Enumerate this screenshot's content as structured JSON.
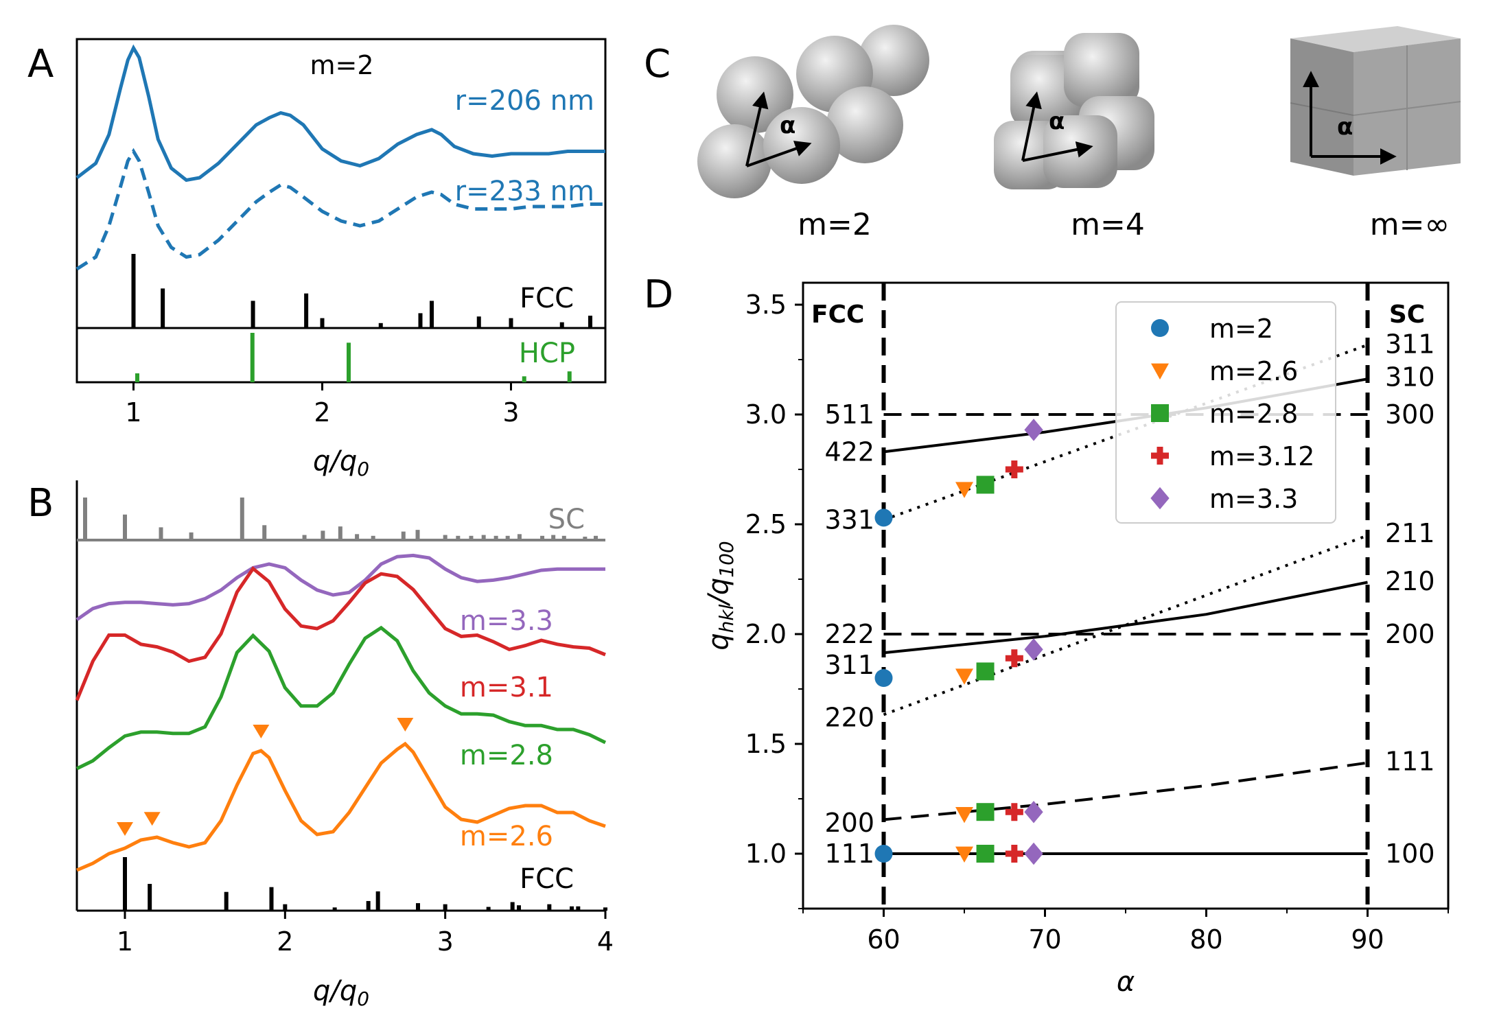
{
  "figure_title": "",
  "panel_labels": {
    "A": "A",
    "B": "B",
    "C": "C",
    "D": "D"
  },
  "colors": {
    "blue": "#1f77b4",
    "orange": "#ff7f0e",
    "green": "#2ca02c",
    "red": "#d62728",
    "purple": "#9467bd",
    "gray": "#808080",
    "black": "#000000"
  },
  "chart_data": [
    {
      "id": "A",
      "type": "line",
      "title": "m=2",
      "xlabel": "q/q0",
      "ylabel": "",
      "xlim": [
        0.7,
        3.5
      ],
      "xticks": [
        1,
        2,
        3
      ],
      "xticklabels": [
        "1",
        "2",
        "3"
      ],
      "series": [
        {
          "name": "r=206 nm",
          "style": "solid",
          "color": "#1f77b4",
          "x": [
            0.7,
            0.8,
            0.87,
            0.93,
            0.97,
            1.0,
            1.03,
            1.08,
            1.13,
            1.2,
            1.28,
            1.35,
            1.45,
            1.55,
            1.65,
            1.72,
            1.78,
            1.83,
            1.9,
            2.0,
            2.1,
            2.2,
            2.3,
            2.4,
            2.5,
            2.58,
            2.63,
            2.7,
            2.8,
            2.9,
            3.0,
            3.1,
            3.2,
            3.3,
            3.4,
            3.5
          ],
          "y": [
            0.56,
            0.62,
            0.74,
            0.93,
            1.05,
            1.1,
            1.06,
            0.9,
            0.72,
            0.6,
            0.55,
            0.56,
            0.62,
            0.7,
            0.78,
            0.81,
            0.83,
            0.82,
            0.78,
            0.68,
            0.63,
            0.61,
            0.64,
            0.7,
            0.74,
            0.76,
            0.74,
            0.69,
            0.66,
            0.65,
            0.66,
            0.66,
            0.66,
            0.67,
            0.67,
            0.67
          ]
        },
        {
          "name": "r=233 nm",
          "style": "dashed",
          "color": "#1f77b4",
          "x": [
            0.7,
            0.8,
            0.87,
            0.93,
            0.97,
            1.0,
            1.03,
            1.08,
            1.13,
            1.2,
            1.28,
            1.35,
            1.45,
            1.55,
            1.65,
            1.72,
            1.78,
            1.83,
            1.9,
            2.0,
            2.1,
            2.2,
            2.3,
            2.4,
            2.5,
            2.58,
            2.63,
            2.7,
            2.8,
            2.9,
            3.0,
            3.1,
            3.2,
            3.3,
            3.4,
            3.5
          ],
          "y": [
            0.18,
            0.23,
            0.36,
            0.52,
            0.63,
            0.67,
            0.63,
            0.5,
            0.36,
            0.27,
            0.23,
            0.24,
            0.3,
            0.38,
            0.46,
            0.5,
            0.53,
            0.52,
            0.48,
            0.42,
            0.38,
            0.36,
            0.38,
            0.43,
            0.48,
            0.5,
            0.49,
            0.45,
            0.43,
            0.43,
            0.43,
            0.44,
            0.44,
            0.44,
            0.45,
            0.45
          ]
        }
      ],
      "annotations": [
        "m=2",
        "r=206 nm",
        "r=233 nm"
      ]
    },
    {
      "id": "A-FCC",
      "type": "bar",
      "name": "FCC",
      "color": "#000000",
      "x": [
        1.0,
        1.155,
        1.633,
        1.915,
        2.0,
        2.31,
        2.52,
        2.58,
        2.83,
        3.0,
        3.27,
        3.42
      ],
      "values": [
        0.9,
        0.48,
        0.33,
        0.42,
        0.12,
        0.06,
        0.18,
        0.33,
        0.14,
        0.12,
        0.07,
        0.15
      ]
    },
    {
      "id": "A-HCP",
      "type": "bar",
      "name": "HCP",
      "color": "#2ca02c",
      "x": [
        1.02,
        1.63,
        2.14,
        3.07,
        3.31
      ],
      "values": [
        0.18,
        1.0,
        0.8,
        0.12,
        0.22
      ]
    },
    {
      "id": "B",
      "type": "line",
      "xlabel": "q/q0",
      "xlim": [
        0.7,
        4.0
      ],
      "xticks": [
        1,
        2,
        3,
        4
      ],
      "xticklabels": [
        "1",
        "2",
        "3",
        "4"
      ],
      "series": [
        {
          "name": "m=3.3",
          "color": "#9467bd",
          "x": [
            0.7,
            0.8,
            0.9,
            1.0,
            1.1,
            1.2,
            1.3,
            1.4,
            1.5,
            1.6,
            1.7,
            1.8,
            1.9,
            2.0,
            2.1,
            2.2,
            2.3,
            2.4,
            2.5,
            2.6,
            2.7,
            2.8,
            2.9,
            3.0,
            3.1,
            3.2,
            3.3,
            3.4,
            3.5,
            3.6,
            3.7,
            3.8,
            3.9,
            4.0
          ],
          "y": [
            0.15,
            0.24,
            0.28,
            0.29,
            0.29,
            0.28,
            0.27,
            0.28,
            0.32,
            0.39,
            0.49,
            0.57,
            0.6,
            0.57,
            0.47,
            0.39,
            0.35,
            0.37,
            0.47,
            0.6,
            0.66,
            0.67,
            0.65,
            0.56,
            0.49,
            0.46,
            0.47,
            0.49,
            0.52,
            0.55,
            0.56,
            0.56,
            0.56,
            0.56
          ]
        },
        {
          "name": "m=3.1",
          "color": "#d62728",
          "x": [
            0.7,
            0.8,
            0.9,
            1.0,
            1.1,
            1.2,
            1.3,
            1.4,
            1.5,
            1.6,
            1.7,
            1.8,
            1.9,
            2.0,
            2.1,
            2.2,
            2.3,
            2.4,
            2.5,
            2.6,
            2.7,
            2.8,
            2.9,
            3.0,
            3.1,
            3.2,
            3.3,
            3.4,
            3.5,
            3.6,
            3.7,
            3.8,
            3.9,
            4.0
          ],
          "y": [
            0.05,
            0.35,
            0.55,
            0.55,
            0.48,
            0.46,
            0.42,
            0.35,
            0.38,
            0.56,
            0.88,
            1.06,
            0.96,
            0.75,
            0.62,
            0.6,
            0.66,
            0.8,
            0.95,
            1.02,
            1.0,
            0.9,
            0.75,
            0.6,
            0.54,
            0.55,
            0.5,
            0.44,
            0.47,
            0.51,
            0.48,
            0.46,
            0.45,
            0.4
          ]
        },
        {
          "name": "m=2.8",
          "color": "#2ca02c",
          "x": [
            0.7,
            0.8,
            0.9,
            1.0,
            1.1,
            1.2,
            1.3,
            1.4,
            1.5,
            1.6,
            1.7,
            1.8,
            1.9,
            2.0,
            2.1,
            2.2,
            2.3,
            2.4,
            2.5,
            2.6,
            2.7,
            2.8,
            2.9,
            3.0,
            3.1,
            3.2,
            3.3,
            3.4,
            3.5,
            3.6,
            3.7,
            3.8,
            3.9,
            4.0
          ],
          "y": [
            0.0,
            0.06,
            0.16,
            0.25,
            0.28,
            0.28,
            0.27,
            0.27,
            0.32,
            0.55,
            0.89,
            1.02,
            0.9,
            0.62,
            0.48,
            0.48,
            0.58,
            0.8,
            1.0,
            1.08,
            0.98,
            0.75,
            0.58,
            0.48,
            0.42,
            0.42,
            0.41,
            0.36,
            0.33,
            0.33,
            0.3,
            0.3,
            0.26,
            0.2
          ]
        },
        {
          "name": "m=2.6",
          "color": "#ff7f0e",
          "x": [
            0.7,
            0.8,
            0.9,
            1.0,
            1.1,
            1.2,
            1.3,
            1.4,
            1.5,
            1.6,
            1.7,
            1.8,
            1.85,
            1.9,
            2.0,
            2.1,
            2.2,
            2.3,
            2.4,
            2.5,
            2.6,
            2.7,
            2.75,
            2.8,
            2.9,
            3.0,
            3.1,
            3.2,
            3.3,
            3.4,
            3.5,
            3.6,
            3.7,
            3.8,
            3.9,
            4.0
          ],
          "y": [
            0.0,
            0.05,
            0.12,
            0.16,
            0.22,
            0.24,
            0.2,
            0.17,
            0.2,
            0.36,
            0.62,
            0.85,
            0.87,
            0.82,
            0.58,
            0.36,
            0.26,
            0.28,
            0.42,
            0.6,
            0.78,
            0.88,
            0.92,
            0.86,
            0.66,
            0.46,
            0.37,
            0.35,
            0.4,
            0.45,
            0.47,
            0.47,
            0.42,
            0.42,
            0.36,
            0.32
          ]
        }
      ],
      "peak_markers_m2.6": [
        1.0,
        1.17,
        1.85,
        2.75
      ],
      "annotations": [
        "m=3.3",
        "m=3.1",
        "m=2.8",
        "m=2.6"
      ]
    },
    {
      "id": "B-SC",
      "type": "bar",
      "name": "SC",
      "color": "#808080",
      "x": [
        0.7,
        1.0,
        1.225,
        1.414,
        1.732,
        1.871,
        2.121,
        2.236,
        2.345,
        2.449,
        2.55,
        2.739,
        2.828,
        3.0,
        3.08,
        3.162,
        3.24,
        3.317,
        3.39,
        3.464,
        3.606,
        3.675,
        3.742,
        3.873,
        3.94
      ],
      "values": [
        1.0,
        0.6,
        0.3,
        0.18,
        1.0,
        0.35,
        0.12,
        0.22,
        0.32,
        0.14,
        0.1,
        0.2,
        0.24,
        0.12,
        0.1,
        0.1,
        0.12,
        0.1,
        0.1,
        0.14,
        0.1,
        0.12,
        0.1,
        0.08,
        0.1
      ]
    },
    {
      "id": "B-FCC",
      "type": "bar",
      "name": "FCC",
      "color": "#000000",
      "x": [
        1.0,
        1.155,
        1.633,
        1.915,
        2.0,
        2.31,
        2.52,
        2.58,
        2.83,
        3.0,
        3.27,
        3.42,
        3.46,
        3.65,
        3.79,
        3.83,
        4.0
      ],
      "values": [
        1.0,
        0.5,
        0.35,
        0.44,
        0.12,
        0.06,
        0.18,
        0.36,
        0.14,
        0.12,
        0.07,
        0.16,
        0.1,
        0.12,
        0.08,
        0.08,
        0.06
      ]
    },
    {
      "id": "D",
      "type": "line",
      "xlabel": "α",
      "ylabel": "q_hkl/q_100",
      "xlim": [
        55,
        95
      ],
      "ylim": [
        0.75,
        3.6
      ],
      "xticks": [
        60,
        70,
        80,
        90
      ],
      "yticks": [
        1.0,
        1.5,
        2.0,
        2.5,
        3.0,
        3.5
      ],
      "xticklabels": [
        "60",
        "70",
        "80",
        "90"
      ],
      "yticklabels": [
        "1.0",
        "1.5",
        "2.0",
        "2.5",
        "3.0",
        "3.5"
      ],
      "corner_labels": {
        "left": "FCC",
        "right": "SC"
      },
      "left_hkl_labels": [
        {
          "label": "511",
          "y": 3.0
        },
        {
          "label": "422",
          "y": 2.83
        },
        {
          "label": "331",
          "y": 2.52
        },
        {
          "label": "222",
          "y": 2.0
        },
        {
          "label": "311",
          "y": 1.86
        },
        {
          "label": "220",
          "y": 1.62
        },
        {
          "label": "200",
          "y": 1.14
        },
        {
          "label": "111",
          "y": 1.0
        }
      ],
      "right_hkl_labels": [
        {
          "label": "311",
          "y": 3.32
        },
        {
          "label": "310",
          "y": 3.17
        },
        {
          "label": "300",
          "y": 3.0
        },
        {
          "label": "211",
          "y": 2.46
        },
        {
          "label": "210",
          "y": 2.24
        },
        {
          "label": "200",
          "y": 2.0
        },
        {
          "label": "111",
          "y": 1.42
        },
        {
          "label": "100",
          "y": 1.0
        }
      ],
      "curves": [
        {
          "style": "solid",
          "color": "#000000",
          "x": [
            60,
            90
          ],
          "y": [
            1.0,
            1.0
          ]
        },
        {
          "style": "dashed",
          "color": "#000000",
          "x": [
            60,
            70,
            80,
            90
          ],
          "y": [
            1.155,
            1.225,
            1.31,
            1.414
          ]
        },
        {
          "style": "dotted",
          "color": "#000000",
          "x": [
            60,
            90
          ],
          "y": [
            1.633,
            2.449
          ]
        },
        {
          "style": "solid",
          "color": "#000000",
          "x": [
            60,
            70,
            80,
            90
          ],
          "y": [
            1.915,
            1.99,
            2.09,
            2.236
          ]
        },
        {
          "style": "dashed",
          "color": "#000000",
          "x": [
            60,
            90
          ],
          "y": [
            2.0,
            2.0
          ]
        },
        {
          "style": "dotted",
          "color": "#000000",
          "x": [
            60,
            90
          ],
          "y": [
            2.52,
            3.317
          ]
        },
        {
          "style": "solid",
          "color": "#000000",
          "x": [
            60,
            70,
            80,
            90
          ],
          "y": [
            2.83,
            2.92,
            3.03,
            3.162
          ]
        },
        {
          "style": "dashed",
          "color": "#000000",
          "x": [
            60,
            90
          ],
          "y": [
            3.0,
            3.0
          ]
        }
      ],
      "phase_boundaries": [
        60,
        90
      ],
      "series": [
        {
          "name": "m=2",
          "marker": "circle",
          "color": "#1f77b4",
          "x": [
            60,
            60,
            60
          ],
          "y": [
            1.0,
            1.8,
            2.53
          ]
        },
        {
          "name": "m=2.6",
          "marker": "triangle-down",
          "color": "#ff7f0e",
          "x": [
            65,
            65,
            65,
            65
          ],
          "y": [
            1.0,
            1.18,
            1.81,
            2.66
          ]
        },
        {
          "name": "m=2.8",
          "marker": "square",
          "color": "#2ca02c",
          "x": [
            66.3,
            66.3,
            66.3,
            66.3
          ],
          "y": [
            1.0,
            1.19,
            1.83,
            2.68
          ]
        },
        {
          "name": "m=3.12",
          "marker": "plus",
          "color": "#d62728",
          "x": [
            68.1,
            68.1,
            68.1,
            68.1
          ],
          "y": [
            1.0,
            1.19,
            1.89,
            2.75
          ]
        },
        {
          "name": "m=3.3",
          "marker": "diamond",
          "color": "#9467bd",
          "x": [
            69.3,
            69.3,
            69.3,
            69.3
          ],
          "y": [
            1.0,
            1.19,
            1.93,
            2.93
          ]
        }
      ]
    }
  ],
  "panel_c": {
    "items": [
      {
        "caption": "m=2",
        "angle_label": "α"
      },
      {
        "caption": "m=4",
        "angle_label": "α"
      },
      {
        "caption": "m=∞",
        "angle_label": "α"
      }
    ]
  }
}
